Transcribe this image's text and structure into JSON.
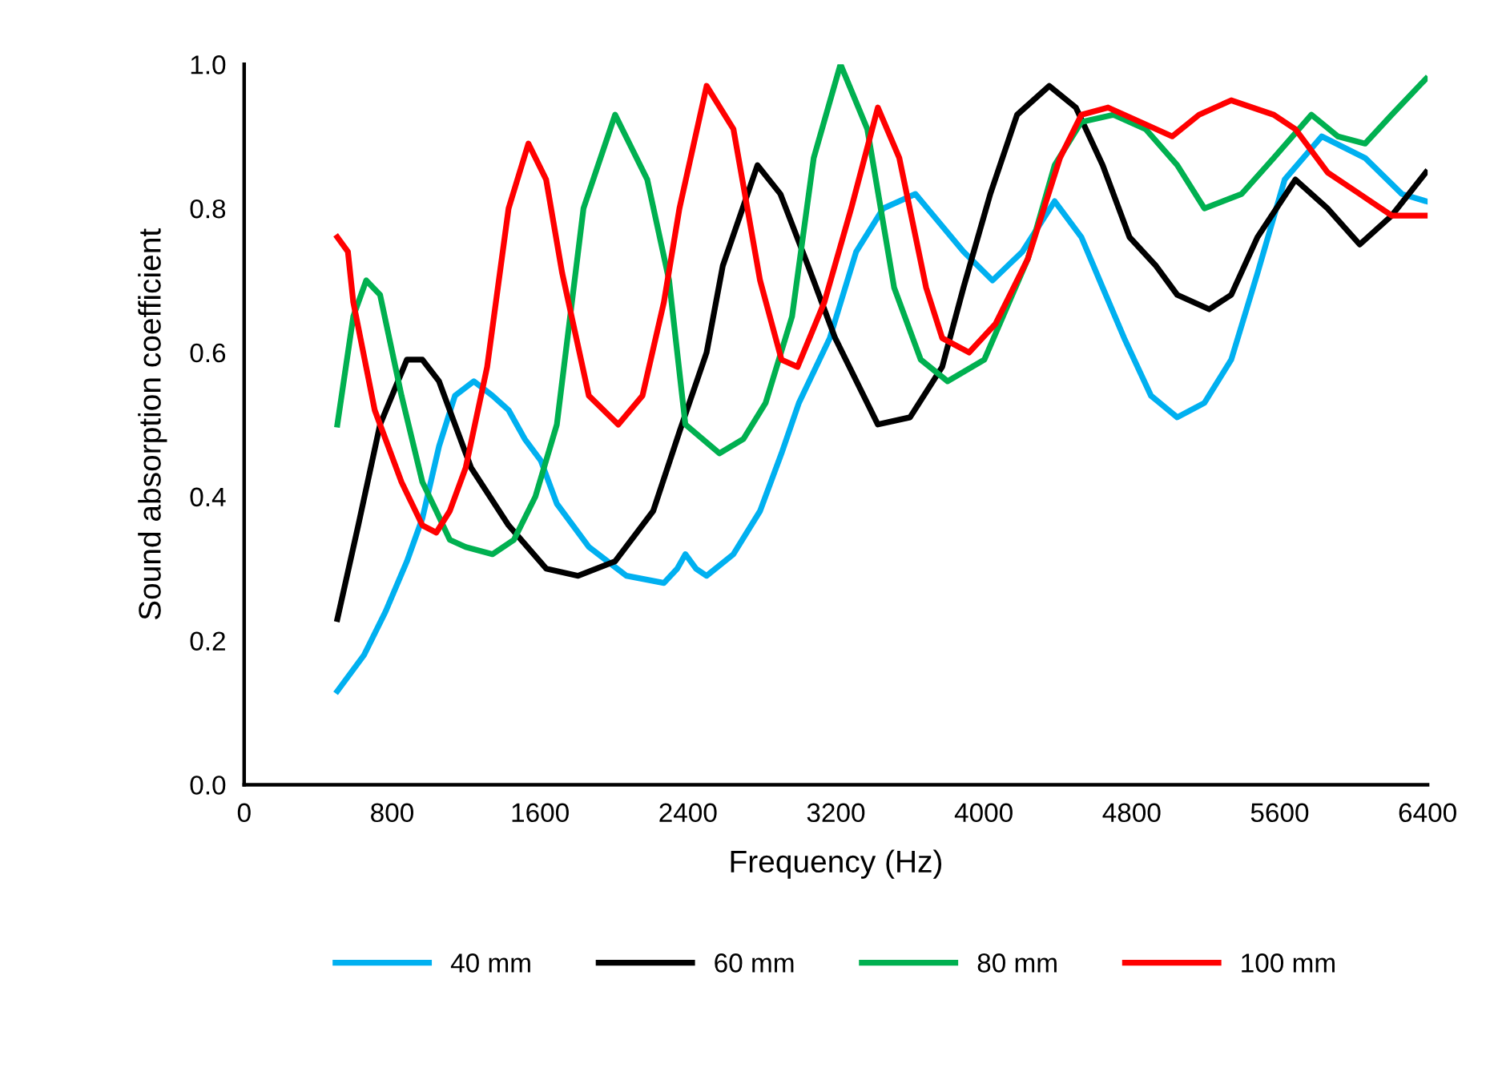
{
  "chart_data": {
    "type": "line",
    "xlabel": "Frequency (Hz)",
    "ylabel": "Sound absorption coefficient",
    "xlim": [
      0,
      6400
    ],
    "ylim": [
      0,
      1.0
    ],
    "xticks": [
      0,
      800,
      1600,
      2400,
      3200,
      4000,
      4800,
      5600,
      6400
    ],
    "yticks": [
      {
        "value": 0,
        "label": "0.0"
      },
      {
        "value": 0.2,
        "label": "0.2"
      },
      {
        "value": 0.4,
        "label": "0.4"
      },
      {
        "value": 0.6,
        "label": "0.6"
      },
      {
        "value": 0.8,
        "label": "0.8"
      },
      {
        "value": 1.0,
        "label": "1.0"
      }
    ],
    "grid": false,
    "legend": "bottom",
    "marker": "none",
    "line_style": "solid",
    "series": [
      {
        "name": "40 mm",
        "color": "#00b0f0",
        "x": [
          504,
          648,
          764,
          880,
          964,
          1054,
          1140,
          1242,
          1343,
          1430,
          1517,
          1604,
          1691,
          1864,
          2067,
          2270,
          2342,
          2386,
          2443,
          2501,
          2646,
          2790,
          2906,
          3000,
          3167,
          3310,
          3456,
          3630,
          3890,
          4047,
          4209,
          4383,
          4528,
          4643,
          4759,
          4904,
          5046,
          5193,
          5338,
          5480,
          5627,
          5828,
          6062,
          6261,
          6391
        ],
        "values": [
          0.13,
          0.18,
          0.24,
          0.31,
          0.37,
          0.47,
          0.54,
          0.56,
          0.54,
          0.52,
          0.48,
          0.45,
          0.39,
          0.33,
          0.29,
          0.28,
          0.3,
          0.32,
          0.3,
          0.29,
          0.32,
          0.38,
          0.46,
          0.53,
          0.62,
          0.74,
          0.8,
          0.82,
          0.74,
          0.7,
          0.74,
          0.81,
          0.76,
          0.69,
          0.62,
          0.54,
          0.51,
          0.53,
          0.59,
          0.71,
          0.84,
          0.9,
          0.87,
          0.82,
          0.81
        ]
      },
      {
        "name": "60 mm",
        "color": "#000000",
        "x": [
          504,
          617,
          735,
          880,
          964,
          1054,
          1140,
          1227,
          1430,
          1633,
          1806,
          2006,
          2212,
          2354,
          2501,
          2588,
          2776,
          2900,
          3050,
          3196,
          3427,
          3601,
          3775,
          3890,
          4035,
          4180,
          4354,
          4498,
          4643,
          4788,
          4932,
          5046,
          5219,
          5338,
          5480,
          5685,
          5859,
          6033,
          6206,
          6391
        ],
        "values": [
          0.23,
          0.36,
          0.5,
          0.59,
          0.59,
          0.56,
          0.5,
          0.44,
          0.36,
          0.3,
          0.29,
          0.31,
          0.38,
          0.49,
          0.6,
          0.72,
          0.86,
          0.82,
          0.72,
          0.62,
          0.5,
          0.51,
          0.58,
          0.69,
          0.82,
          0.93,
          0.97,
          0.94,
          0.86,
          0.76,
          0.72,
          0.68,
          0.66,
          0.68,
          0.76,
          0.84,
          0.8,
          0.75,
          0.79,
          0.85
        ]
      },
      {
        "name": "80 mm",
        "color": "#00b050",
        "x": [
          504,
          590,
          660,
          735,
          851,
          964,
          1039,
          1112,
          1198,
          1343,
          1459,
          1575,
          1691,
          1835,
          2006,
          2180,
          2298,
          2386,
          2570,
          2700,
          2820,
          2963,
          3080,
          3225,
          3370,
          3515,
          3659,
          3804,
          4003,
          4238,
          4383,
          4528,
          4701,
          4875,
          5046,
          5193,
          5394,
          5568,
          5772,
          5915,
          6062,
          6206,
          6391
        ],
        "values": [
          0.5,
          0.65,
          0.7,
          0.68,
          0.54,
          0.42,
          0.38,
          0.34,
          0.33,
          0.32,
          0.34,
          0.4,
          0.5,
          0.8,
          0.93,
          0.84,
          0.7,
          0.5,
          0.46,
          0.48,
          0.53,
          0.65,
          0.87,
          1.0,
          0.91,
          0.69,
          0.59,
          0.56,
          0.59,
          0.73,
          0.86,
          0.92,
          0.93,
          0.91,
          0.86,
          0.8,
          0.82,
          0.87,
          0.93,
          0.9,
          0.89,
          0.93,
          0.98
        ]
      },
      {
        "name": "100 mm",
        "color": "#ff0000",
        "x": [
          504,
          561,
          590,
          706,
          851,
          964,
          1039,
          1112,
          1198,
          1314,
          1430,
          1537,
          1633,
          1720,
          1864,
          2023,
          2154,
          2270,
          2354,
          2501,
          2646,
          2790,
          2906,
          2993,
          3138,
          3283,
          3427,
          3543,
          3688,
          3775,
          3920,
          4064,
          4238,
          4412,
          4528,
          4672,
          4846,
          5019,
          5164,
          5338,
          5568,
          5685,
          5859,
          6033,
          6206,
          6391
        ],
        "values": [
          0.76,
          0.74,
          0.67,
          0.52,
          0.42,
          0.36,
          0.35,
          0.38,
          0.44,
          0.58,
          0.8,
          0.89,
          0.84,
          0.71,
          0.54,
          0.5,
          0.54,
          0.67,
          0.8,
          0.97,
          0.91,
          0.7,
          0.59,
          0.58,
          0.67,
          0.8,
          0.94,
          0.87,
          0.69,
          0.62,
          0.6,
          0.64,
          0.73,
          0.87,
          0.93,
          0.94,
          0.92,
          0.9,
          0.93,
          0.95,
          0.93,
          0.91,
          0.85,
          0.82,
          0.79,
          0.79
        ]
      }
    ]
  }
}
